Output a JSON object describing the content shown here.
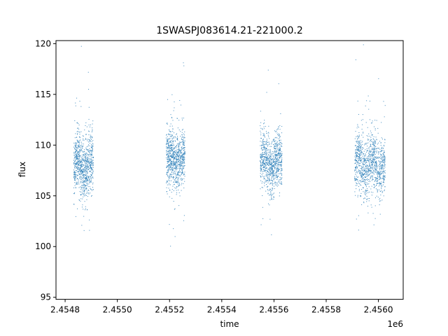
{
  "chart_data": {
    "type": "scatter",
    "title": "1SWASPJ083614.21-221000.2",
    "xlabel": "time",
    "ylabel": "flux",
    "x_offset_label": "1e6",
    "xlim": [
      2454765,
      2456095
    ],
    "ylim": [
      94.8,
      120.3
    ],
    "x_ticks": [
      2454800,
      2455000,
      2455200,
      2455400,
      2455600,
      2455800,
      2456000
    ],
    "x_tick_labels": [
      "2.4548",
      "2.4550",
      "2.4552",
      "2.4554",
      "2.4556",
      "2.4558",
      "2.4560"
    ],
    "y_ticks": [
      95,
      100,
      105,
      110,
      115,
      120
    ],
    "y_tick_labels": [
      "95",
      "100",
      "105",
      "110",
      "115",
      "120"
    ],
    "grid": false,
    "marker_color": "#1f77b4",
    "series": [
      {
        "segments": [
          {
            "x_start": 2454833,
            "x_end": 2454908,
            "y_center": 108.0,
            "y_spread": 2.6,
            "n": 900
          },
          {
            "x_start": 2455187,
            "x_end": 2455259,
            "y_center": 108.5,
            "y_spread": 2.6,
            "n": 850
          },
          {
            "x_start": 2455547,
            "x_end": 2455631,
            "y_center": 108.2,
            "y_spread": 2.5,
            "n": 900
          },
          {
            "x_start": 2455909,
            "x_end": 2456026,
            "y_center": 108.0,
            "y_spread": 2.6,
            "n": 1100
          }
        ]
      }
    ]
  }
}
